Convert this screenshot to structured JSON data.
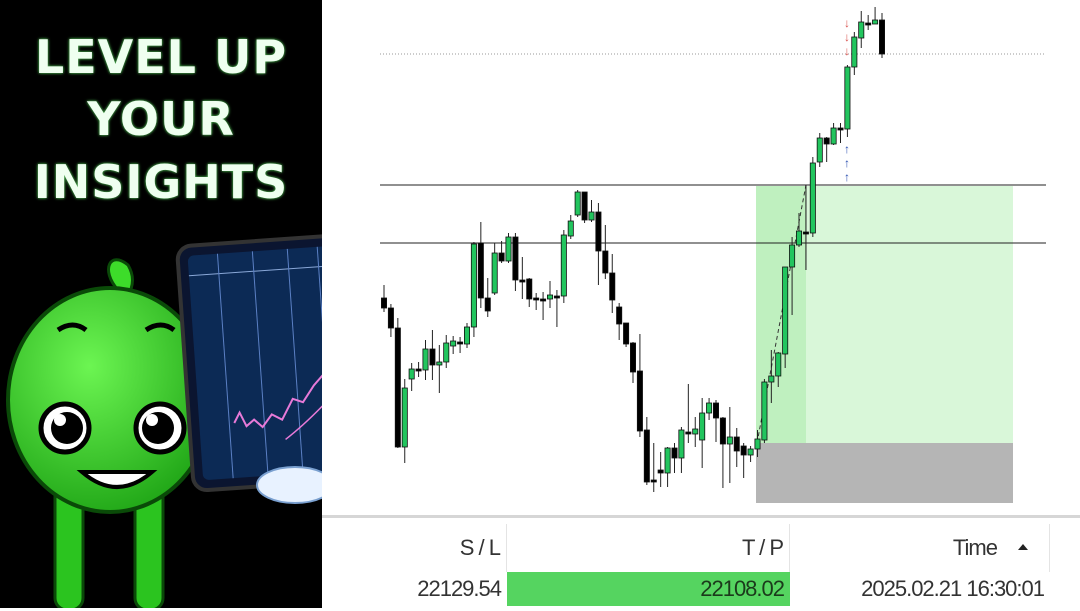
{
  "promo": {
    "lines": [
      "LEVEL UP",
      "YOUR",
      "INSIGHTS"
    ]
  },
  "table": {
    "headers": {
      "sl": "S / L",
      "tp": "T / P",
      "time": "Time"
    },
    "sort_icon": "triangle-up-icon",
    "row": {
      "sl": "22129.54",
      "tp": "22108.02",
      "time": "2025.02.21 16:30:01"
    }
  },
  "colors": {
    "bull_candle": "#22c55e",
    "bear_candle": "#000000",
    "take_profit_zone": "#d9f7d9",
    "stop_loss_zone": "#b5b5b5",
    "tp_cell": "#55d460",
    "sell_arrow": "#d9534f",
    "buy_arrow": "#2a4fb0",
    "mascot": "#3ddc2a"
  }
}
